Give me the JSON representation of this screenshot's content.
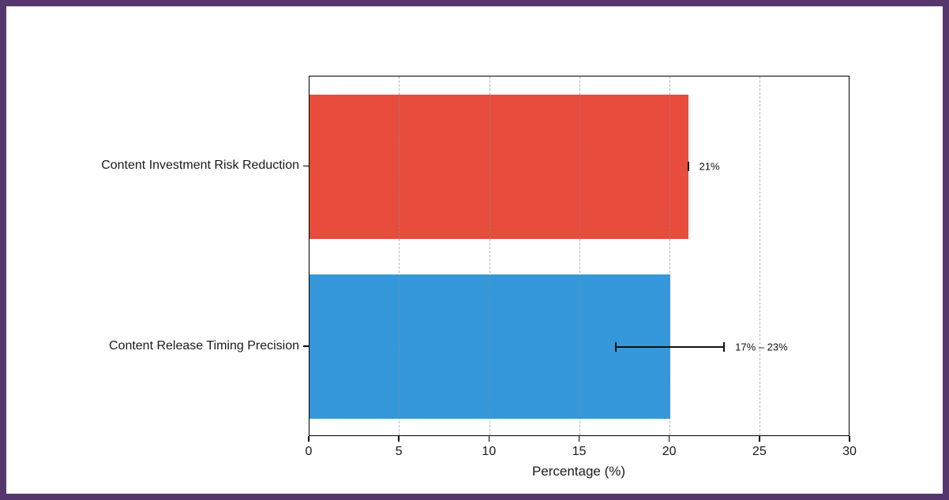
{
  "frame": {
    "border_color": "#55376e",
    "background_color": "#ffffff"
  },
  "chart_data": {
    "type": "bar",
    "orientation": "horizontal",
    "title": "",
    "xlabel": "Percentage (%)",
    "ylabel": "",
    "categories": [
      "Content Investment Risk Reduction",
      "Content Release Timing Precision"
    ],
    "values": [
      21,
      20
    ],
    "bar_colors": [
      "#e74c3c",
      "#3498db"
    ],
    "error_bars": [
      {
        "low": 21,
        "high": 21
      },
      {
        "low": 17,
        "high": 23
      }
    ],
    "annotations": [
      "21%",
      "17% – 23%"
    ],
    "x_ticks": [
      "0",
      "5",
      "10",
      "15",
      "20",
      "25",
      "30"
    ],
    "x_tick_values": [
      0,
      5,
      10,
      15,
      20,
      25,
      30
    ],
    "xlim": [
      0,
      30
    ],
    "grid": "vertical-dashed",
    "grid_color": "#8c8c8c",
    "axis_color": "#000000",
    "text_color": "#1a1a1a",
    "bar_fraction_of_band": 0.8,
    "legend": null
  }
}
